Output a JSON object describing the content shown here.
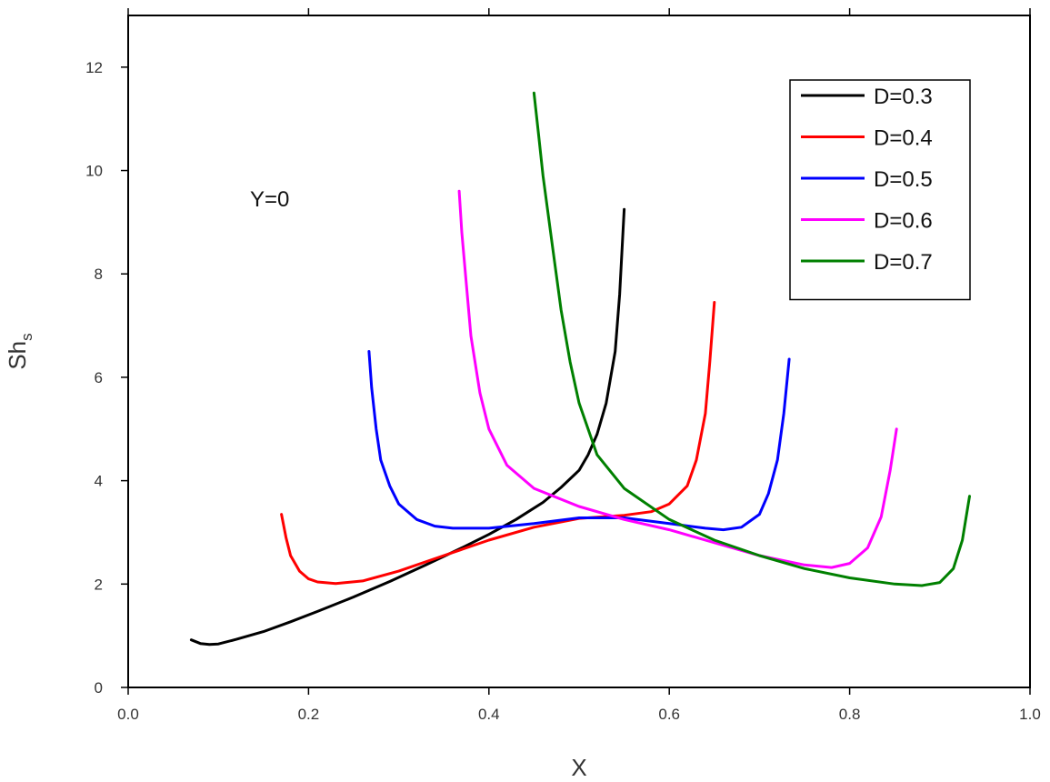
{
  "chart_data": {
    "type": "line",
    "title": "",
    "xlabel": "X",
    "ylabel_main": "Sh",
    "ylabel_sub": "s",
    "xlim": [
      0.0,
      1.0
    ],
    "ylim": [
      0,
      13
    ],
    "x_ticks": [
      "0.0",
      "0.2",
      "0.4",
      "0.6",
      "0.8",
      "1.0"
    ],
    "y_ticks": [
      "0",
      "2",
      "4",
      "6",
      "8",
      "10",
      "12"
    ],
    "annotation": "Y=0",
    "legend_position": "top-right",
    "grid": false,
    "series": [
      {
        "name": "D=0.3",
        "color": "#000000",
        "points": [
          [
            0.07,
            0.92
          ],
          [
            0.08,
            0.85
          ],
          [
            0.09,
            0.83
          ],
          [
            0.1,
            0.84
          ],
          [
            0.12,
            0.93
          ],
          [
            0.15,
            1.08
          ],
          [
            0.18,
            1.27
          ],
          [
            0.21,
            1.47
          ],
          [
            0.25,
            1.75
          ],
          [
            0.29,
            2.05
          ],
          [
            0.33,
            2.37
          ],
          [
            0.37,
            2.7
          ],
          [
            0.4,
            2.96
          ],
          [
            0.43,
            3.25
          ],
          [
            0.46,
            3.58
          ],
          [
            0.48,
            3.87
          ],
          [
            0.5,
            4.2
          ],
          [
            0.51,
            4.5
          ],
          [
            0.52,
            4.9
          ],
          [
            0.53,
            5.5
          ],
          [
            0.54,
            6.5
          ],
          [
            0.545,
            7.6
          ],
          [
            0.55,
            9.25
          ]
        ]
      },
      {
        "name": "D=0.4",
        "color": "#ff0000",
        "points": [
          [
            0.17,
            3.35
          ],
          [
            0.175,
            2.9
          ],
          [
            0.18,
            2.55
          ],
          [
            0.19,
            2.25
          ],
          [
            0.2,
            2.1
          ],
          [
            0.21,
            2.04
          ],
          [
            0.23,
            2.01
          ],
          [
            0.26,
            2.06
          ],
          [
            0.3,
            2.25
          ],
          [
            0.35,
            2.55
          ],
          [
            0.4,
            2.85
          ],
          [
            0.45,
            3.1
          ],
          [
            0.5,
            3.27
          ],
          [
            0.55,
            3.33
          ],
          [
            0.58,
            3.4
          ],
          [
            0.6,
            3.55
          ],
          [
            0.62,
            3.9
          ],
          [
            0.63,
            4.4
          ],
          [
            0.64,
            5.3
          ],
          [
            0.645,
            6.3
          ],
          [
            0.65,
            7.45
          ]
        ]
      },
      {
        "name": "D=0.5",
        "color": "#0000ff",
        "points": [
          [
            0.267,
            6.5
          ],
          [
            0.27,
            5.8
          ],
          [
            0.275,
            5.0
          ],
          [
            0.28,
            4.4
          ],
          [
            0.29,
            3.9
          ],
          [
            0.3,
            3.55
          ],
          [
            0.32,
            3.25
          ],
          [
            0.34,
            3.12
          ],
          [
            0.36,
            3.08
          ],
          [
            0.4,
            3.08
          ],
          [
            0.45,
            3.17
          ],
          [
            0.5,
            3.28
          ],
          [
            0.55,
            3.28
          ],
          [
            0.6,
            3.17
          ],
          [
            0.64,
            3.08
          ],
          [
            0.66,
            3.05
          ],
          [
            0.68,
            3.1
          ],
          [
            0.7,
            3.35
          ],
          [
            0.71,
            3.75
          ],
          [
            0.72,
            4.4
          ],
          [
            0.727,
            5.3
          ],
          [
            0.733,
            6.35
          ]
        ]
      },
      {
        "name": "D=0.6",
        "color": "#ff00ff",
        "points": [
          [
            0.367,
            9.6
          ],
          [
            0.37,
            8.8
          ],
          [
            0.375,
            7.8
          ],
          [
            0.38,
            6.8
          ],
          [
            0.39,
            5.7
          ],
          [
            0.4,
            5.0
          ],
          [
            0.42,
            4.3
          ],
          [
            0.45,
            3.85
          ],
          [
            0.5,
            3.5
          ],
          [
            0.55,
            3.25
          ],
          [
            0.6,
            3.05
          ],
          [
            0.65,
            2.8
          ],
          [
            0.7,
            2.55
          ],
          [
            0.75,
            2.37
          ],
          [
            0.78,
            2.32
          ],
          [
            0.8,
            2.4
          ],
          [
            0.82,
            2.7
          ],
          [
            0.835,
            3.3
          ],
          [
            0.845,
            4.2
          ],
          [
            0.852,
            5.0
          ]
        ]
      },
      {
        "name": "D=0.7",
        "color": "#008000",
        "points": [
          [
            0.45,
            11.5
          ],
          [
            0.455,
            10.7
          ],
          [
            0.46,
            9.9
          ],
          [
            0.47,
            8.6
          ],
          [
            0.48,
            7.3
          ],
          [
            0.49,
            6.3
          ],
          [
            0.5,
            5.5
          ],
          [
            0.52,
            4.5
          ],
          [
            0.55,
            3.85
          ],
          [
            0.6,
            3.25
          ],
          [
            0.65,
            2.85
          ],
          [
            0.7,
            2.55
          ],
          [
            0.75,
            2.3
          ],
          [
            0.8,
            2.12
          ],
          [
            0.85,
            2.0
          ],
          [
            0.88,
            1.97
          ],
          [
            0.9,
            2.03
          ],
          [
            0.915,
            2.3
          ],
          [
            0.925,
            2.85
          ],
          [
            0.933,
            3.7
          ]
        ]
      }
    ]
  }
}
